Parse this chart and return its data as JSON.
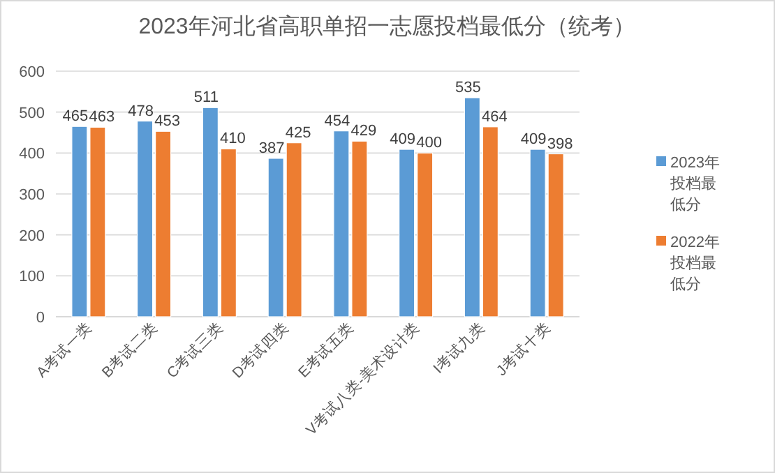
{
  "chart_data": {
    "type": "bar",
    "title": "2023年河北省高职单招一志愿投档最低分（统考）",
    "categories": [
      "A考试一类",
      "B考试二类",
      "C考试三类",
      "D考试四类",
      "E考试五类",
      "V考试八类-美术设计类",
      "I考试九类",
      "J考试十类"
    ],
    "series": [
      {
        "name": "2023年投档最低分",
        "color": "#5b9bd5",
        "values": [
          465,
          478,
          511,
          387,
          454,
          409,
          535,
          409
        ]
      },
      {
        "name": "2022年投档最低分",
        "color": "#ed7d31",
        "values": [
          463,
          453,
          410,
          425,
          429,
          400,
          464,
          398
        ]
      }
    ],
    "ylim": [
      0,
      600
    ],
    "yticks": [
      0,
      100,
      200,
      300,
      400,
      500,
      600
    ],
    "grid": "y",
    "legend": "right",
    "data_labels": true
  }
}
